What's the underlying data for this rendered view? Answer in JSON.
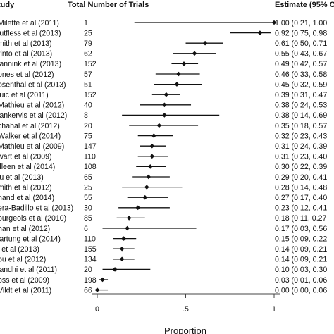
{
  "chart_data": {
    "type": "forest",
    "headers": {
      "study": "tudy",
      "trials": "Total Number of Trials",
      "estimate": "Estimate (95% C"
    },
    "xlabel": "Proportion",
    "xlim": [
      0,
      1
    ],
    "xticks": [
      {
        "value": 0,
        "label": "0"
      },
      {
        "value": 0.5,
        "label": ".5"
      },
      {
        "value": 1,
        "label": "1"
      }
    ],
    "rows": [
      {
        "study": "Milette et al (2011)",
        "n": "1",
        "estimate": 1.0,
        "lo": 0.21,
        "hi": 1.0,
        "ci_text": "1.00 (0.21, 1.00"
      },
      {
        "study": "lutfless et al (2013)",
        "n": "25",
        "estimate": 0.92,
        "lo": 0.75,
        "hi": 0.98,
        "ci_text": "0.92 (0.75, 0.98"
      },
      {
        "study": "mith et al (2013)",
        "n": "79",
        "estimate": 0.61,
        "lo": 0.5,
        "hi": 0.71,
        "ci_text": "0.61 (0.50, 0.71"
      },
      {
        "study": "rinto et al (2013)",
        "n": "62",
        "estimate": 0.55,
        "lo": 0.43,
        "hi": 0.67,
        "ci_text": "0.55 (0.43, 0.67"
      },
      {
        "study": "lannink et al (2013)",
        "n": "152",
        "estimate": 0.49,
        "lo": 0.42,
        "hi": 0.57,
        "ci_text": "0.49 (0.42, 0.57"
      },
      {
        "study": "ones et al (2012)",
        "n": "57",
        "estimate": 0.46,
        "lo": 0.33,
        "hi": 0.58,
        "ci_text": "0.46 (0.33, 0.58"
      },
      {
        "study": "osenthal et al (2013)",
        "n": "51",
        "estimate": 0.45,
        "lo": 0.32,
        "hi": 0.59,
        "ci_text": "0.45 (0.32, 0.59"
      },
      {
        "study": "luic et al (2011)",
        "n": "152",
        "estimate": 0.39,
        "lo": 0.31,
        "hi": 0.47,
        "ci_text": "0.39 (0.31, 0.47"
      },
      {
        "study": "Mathieu et al (2012)",
        "n": "40",
        "estimate": 0.38,
        "lo": 0.24,
        "hi": 0.53,
        "ci_text": "0.38 (0.24, 0.53"
      },
      {
        "study": "lankervis et al (2012)",
        "n": "8",
        "estimate": 0.38,
        "lo": 0.14,
        "hi": 0.69,
        "ci_text": "0.38 (0.14, 0.69"
      },
      {
        "study": "chahal et al (2012)",
        "n": "20",
        "estimate": 0.35,
        "lo": 0.18,
        "hi": 0.57,
        "ci_text": "0.35 (0.18, 0.57"
      },
      {
        "study": "Walker et al (2014)",
        "n": "75",
        "estimate": 0.32,
        "lo": 0.23,
        "hi": 0.43,
        "ci_text": "0.32 (0.23, 0.43"
      },
      {
        "study": "Mathieu et al (2009)",
        "n": "147",
        "estimate": 0.31,
        "lo": 0.24,
        "hi": 0.39,
        "ci_text": "0.31 (0.24, 0.39"
      },
      {
        "study": "wart et al (2009)",
        "n": "110",
        "estimate": 0.31,
        "lo": 0.23,
        "hi": 0.4,
        "ci_text": "0.31 (0.23, 0.40"
      },
      {
        "study": "illeen et al (2014)",
        "n": "108",
        "estimate": 0.3,
        "lo": 0.22,
        "hi": 0.39,
        "ci_text": "0.30 (0.22, 0.39"
      },
      {
        "study": "iu et al (2013)",
        "n": "65",
        "estimate": 0.29,
        "lo": 0.2,
        "hi": 0.41,
        "ci_text": "0.29 (0.20, 0.41"
      },
      {
        "study": "mith et al (2012)",
        "n": "25",
        "estimate": 0.28,
        "lo": 0.14,
        "hi": 0.48,
        "ci_text": "0.28 (0.14, 0.48"
      },
      {
        "study": "nand et al (2014)",
        "n": "55",
        "estimate": 0.27,
        "lo": 0.17,
        "hi": 0.4,
        "ci_text": "0.27 (0.17, 0.40"
      },
      {
        "study": "era-Badillo et al (2013)",
        "n": "30",
        "estimate": 0.23,
        "lo": 0.12,
        "hi": 0.41,
        "ci_text": "0.23 (0.12, 0.41"
      },
      {
        "study": "ourgeois et al (2010)",
        "n": "85",
        "estimate": 0.18,
        "lo": 0.11,
        "hi": 0.27,
        "ci_text": "0.18 (0.11, 0.27"
      },
      {
        "study": "han et al (2012)",
        "n": "6",
        "estimate": 0.17,
        "lo": 0.03,
        "hi": 0.56,
        "ci_text": "0.17 (0.03, 0.56"
      },
      {
        "study": "lartung et al (2014)",
        "n": "110",
        "estimate": 0.15,
        "lo": 0.09,
        "hi": 0.22,
        "ci_text": "0.15 (0.09, 0.22"
      },
      {
        "study": "i et al (2013)",
        "n": "155",
        "estimate": 0.14,
        "lo": 0.09,
        "hi": 0.21,
        "ci_text": "0.14 (0.09, 0.21"
      },
      {
        "study": "ou et al (2012)",
        "n": "134",
        "estimate": 0.14,
        "lo": 0.09,
        "hi": 0.21,
        "ci_text": "0.14 (0.09, 0.21"
      },
      {
        "study": "landhi et al (2011)",
        "n": "20",
        "estimate": 0.1,
        "lo": 0.03,
        "hi": 0.3,
        "ci_text": "0.10 (0.03, 0.30"
      },
      {
        "study": "oss et al (2009)",
        "n": "198",
        "estimate": 0.03,
        "lo": 0.01,
        "hi": 0.06,
        "ci_text": "0.03 (0.01, 0.06"
      },
      {
        "study": "Vildt et al (2011)",
        "n": "66",
        "estimate": 0.0,
        "lo": 0.0,
        "hi": 0.06,
        "ci_text": "0.00 (0.00, 0.06"
      }
    ]
  }
}
